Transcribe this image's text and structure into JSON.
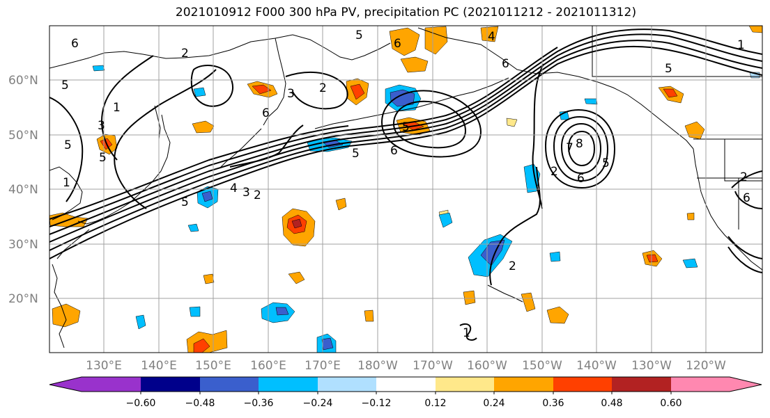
{
  "title": "2021010912 F000 300 hPa PV, precipitation PC (2021011212 - 2021011312)",
  "map": {
    "lon_ticks": [
      "130°E",
      "140°E",
      "150°E",
      "160°E",
      "170°E",
      "180°W",
      "170°W",
      "160°W",
      "150°W",
      "140°W",
      "130°W",
      "120°W"
    ],
    "lat_ticks": [
      "60°N",
      "50°N",
      "40°N",
      "30°N",
      "20°N"
    ],
    "contour_labels": [
      "6",
      "2",
      "5",
      "3",
      "2",
      "1",
      "5",
      "6",
      "4",
      "6",
      "5",
      "6",
      "5",
      "5",
      "5",
      "6",
      "5",
      "4",
      "3",
      "2",
      "5",
      "1",
      "3",
      "2",
      "8",
      "7",
      "6",
      "5",
      "2",
      "1",
      "1",
      "2",
      "6"
    ],
    "colors": {
      "coast": "#000000",
      "grid": "#a0a0a0",
      "pv_contour": "#000000"
    }
  },
  "colorbar": {
    "labels": [
      "−0.60",
      "−0.48",
      "−0.36",
      "−0.24",
      "−0.12",
      "0.12",
      "0.24",
      "0.36",
      "0.48",
      "0.60"
    ],
    "colors": [
      "#9932cc",
      "#00008b",
      "#3a5fcd",
      "#00bfff",
      "#b0e0ff",
      "#ffffff",
      "#ffe88a",
      "#ffa500",
      "#ff4000",
      "#b22222",
      "#ff88b0"
    ]
  }
}
